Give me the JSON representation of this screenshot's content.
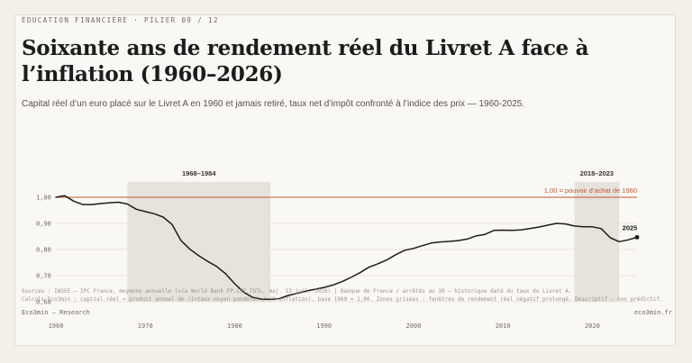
{
  "header": {
    "eyebrow": "ÉDUCATION FINANCIÈRE  ·  PILIER 09 / 12",
    "title": "Soixante ans de rendement réel du Livret A face à l’inflation (1960–2026)",
    "subtitle": "Capital réel d’un euro placé sur le Livret A en 1960 et jamais retiré, taux net d’impôt confronté à l’indice des prix — 1960-2025."
  },
  "footer": {
    "source_line1": "Sources : INSEE — IPC France, moyenne annuelle (via World Bank FP.CPI.TOTL, maj. 13 juil. 2026) | Banque de France / arrêtés au 30 — historique daté du taux du Livret A.",
    "source_line2": "Calculs Eco3min : capital réel = produit annuel de (1+taux moyen pondéré) / (1+inflation), base 1960 = 1,00. Zones grisées : fenêtres de rendement réel négatif prolongé. Descriptif — non prédictif.",
    "brand": "Eco3min — Research",
    "domain": "eco3min.fr"
  },
  "colors": {
    "line": "#1e1c19",
    "reference": "#c0583a",
    "shade": "#e6e2dc",
    "grid": "#e4dfd7",
    "axis_text": "#6f6a62"
  },
  "chart_data": {
    "type": "line",
    "title": "",
    "xlabel": "",
    "ylabel": "",
    "xlim": [
      1960,
      2025
    ],
    "ylim": [
      0.6,
      1.0
    ],
    "y_ticks": [
      0.6,
      0.7,
      0.8,
      0.9,
      1.0
    ],
    "y_tick_labels": [
      "0,60",
      "0,70",
      "0,80",
      "0,90",
      "1,00"
    ],
    "x_ticks": [
      1960,
      1970,
      1980,
      1990,
      2000,
      2010,
      2020
    ],
    "x_tick_labels": [
      "1960",
      "1970",
      "1980",
      "1990",
      "2000",
      "2010",
      "2020"
    ],
    "grid": true,
    "series": [
      {
        "x": [
          1960,
          1961,
          1962,
          1963,
          1964,
          1965,
          1966,
          1967,
          1968,
          1969,
          1970,
          1971,
          1972,
          1973,
          1974,
          1975,
          1976,
          1977,
          1978,
          1979,
          1980,
          1981,
          1982,
          1983,
          1984,
          1985,
          1986,
          1987,
          1988,
          1989,
          1990,
          1991,
          1992,
          1993,
          1994,
          1995,
          1996,
          1997,
          1998,
          1999,
          2000,
          2001,
          2002,
          2003,
          2004,
          2005,
          2006,
          2007,
          2008,
          2009,
          2010,
          2011,
          2012,
          2013,
          2014,
          2015,
          2016,
          2017,
          2018,
          2019,
          2020,
          2021,
          2022,
          2023,
          2024,
          2025
        ],
        "values": [
          1.0,
          1.006,
          0.985,
          0.972,
          0.972,
          0.976,
          0.979,
          0.981,
          0.974,
          0.954,
          0.945,
          0.937,
          0.924,
          0.896,
          0.834,
          0.801,
          0.776,
          0.754,
          0.735,
          0.707,
          0.669,
          0.637,
          0.617,
          0.61,
          0.609,
          0.612,
          0.624,
          0.632,
          0.641,
          0.648,
          0.655,
          0.664,
          0.677,
          0.693,
          0.711,
          0.732,
          0.745,
          0.76,
          0.78,
          0.797,
          0.804,
          0.815,
          0.825,
          0.829,
          0.831,
          0.834,
          0.84,
          0.852,
          0.858,
          0.873,
          0.874,
          0.873,
          0.875,
          0.88,
          0.886,
          0.893,
          0.9,
          0.898,
          0.89,
          0.887,
          0.887,
          0.88,
          0.845,
          0.83,
          0.837,
          0.847
        ]
      }
    ],
    "shaded_ranges": [
      {
        "label": "1968–1984",
        "start": 1968,
        "end": 1984
      },
      {
        "label": "2018–2023",
        "start": 2018,
        "end": 2023
      }
    ],
    "reference_line": {
      "value": 1.0,
      "label": "1,00 = pouvoir d’achat de 1960"
    },
    "end_label": "2025"
  }
}
